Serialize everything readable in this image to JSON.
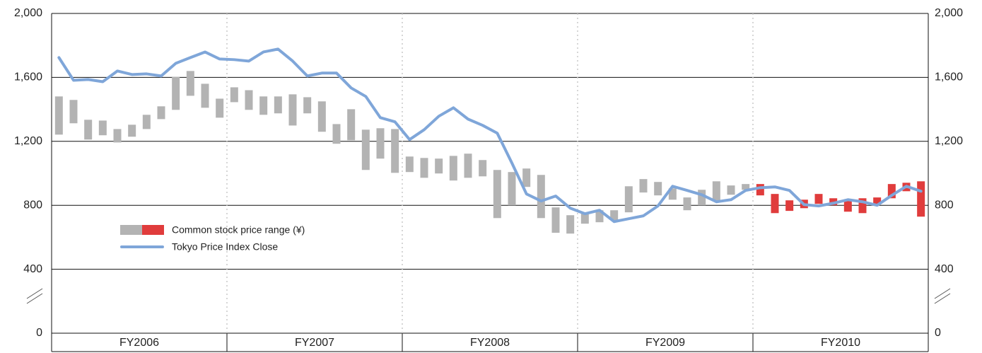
{
  "chart_data": {
    "type": "range_bar_line",
    "groups": [
      "FY2006",
      "FY2007",
      "FY2008",
      "FY2009",
      "FY2010"
    ],
    "ylim": [
      0,
      2000
    ],
    "yticks": [
      {
        "value": 0,
        "label": "0"
      },
      {
        "value": 400,
        "label": "400"
      },
      {
        "value": 800,
        "label": "800"
      },
      {
        "value": 1200,
        "label": "1,200"
      },
      {
        "value": 1600,
        "label": "1,600"
      },
      {
        "value": 2000,
        "label": "2,000"
      }
    ],
    "grid": true,
    "series": [
      {
        "name": "Common stock price range (¥)",
        "low": [
          1242,
          1313,
          1211,
          1238,
          1193,
          1229,
          1277,
          1339,
          1397,
          1485,
          1410,
          1348,
          1445,
          1397,
          1366,
          1375,
          1299,
          1375,
          1260,
          1185,
          1207,
          1021,
          1092,
          1003,
          1008,
          972,
          999,
          955,
          972,
          981,
          720,
          800,
          915,
          720,
          628,
          623,
          685,
          694,
          707,
          756,
          880,
          862,
          835,
          769,
          800,
          831,
          866,
          897,
          862,
          751,
          765,
          782,
          809,
          800,
          760,
          751,
          809,
          844,
          888,
          729
        ],
        "high": [
          1481,
          1459,
          1335,
          1330,
          1277,
          1304,
          1366,
          1419,
          1604,
          1640,
          1560,
          1467,
          1538,
          1520,
          1481,
          1481,
          1494,
          1476,
          1450,
          1308,
          1401,
          1273,
          1282,
          1277,
          1105,
          1096,
          1092,
          1109,
          1123,
          1083,
          1021,
          1008,
          1030,
          990,
          787,
          738,
          747,
          769,
          769,
          919,
          964,
          946,
          906,
          849,
          897,
          950,
          924,
          933,
          933,
          871,
          831,
          835,
          871,
          844,
          827,
          844,
          849,
          933,
          941,
          950
        ],
        "colors": [
          "#b3b3b3",
          "#b3b3b3",
          "#b3b3b3",
          "#b3b3b3",
          "#b3b3b3",
          "#b3b3b3",
          "#b3b3b3",
          "#b3b3b3",
          "#b3b3b3",
          "#b3b3b3",
          "#b3b3b3",
          "#b3b3b3",
          "#b3b3b3",
          "#b3b3b3",
          "#b3b3b3",
          "#b3b3b3",
          "#b3b3b3",
          "#b3b3b3",
          "#b3b3b3",
          "#b3b3b3",
          "#b3b3b3",
          "#b3b3b3",
          "#b3b3b3",
          "#b3b3b3",
          "#b3b3b3",
          "#b3b3b3",
          "#b3b3b3",
          "#b3b3b3",
          "#b3b3b3",
          "#b3b3b3",
          "#b3b3b3",
          "#b3b3b3",
          "#b3b3b3",
          "#b3b3b3",
          "#b3b3b3",
          "#b3b3b3",
          "#b3b3b3",
          "#b3b3b3",
          "#b3b3b3",
          "#b3b3b3",
          "#b3b3b3",
          "#b3b3b3",
          "#b3b3b3",
          "#b3b3b3",
          "#b3b3b3",
          "#b3b3b3",
          "#b3b3b3",
          "#b3b3b3",
          "#e03c3c",
          "#e03c3c",
          "#e03c3c",
          "#e03c3c",
          "#e03c3c",
          "#e03c3c",
          "#e03c3c",
          "#e03c3c",
          "#e03c3c",
          "#e03c3c",
          "#e03c3c",
          "#e03c3c"
        ]
      },
      {
        "name": "Tokyo Price Index Close",
        "color": "#7fa6d9",
        "values": [
          1724,
          1582,
          1587,
          1573,
          1640,
          1618,
          1622,
          1609,
          1688,
          1724,
          1759,
          1715,
          1711,
          1702,
          1759,
          1777,
          1702,
          1609,
          1627,
          1627,
          1534,
          1481,
          1348,
          1322,
          1211,
          1273,
          1357,
          1410,
          1339,
          1300,
          1251,
          1065,
          871,
          827,
          858,
          782,
          747,
          769,
          698,
          716,
          734,
          796,
          919,
          893,
          866,
          822,
          835,
          893,
          910,
          915,
          893,
          804,
          796,
          813,
          835,
          822,
          800,
          862,
          919,
          888
        ]
      }
    ]
  }
}
